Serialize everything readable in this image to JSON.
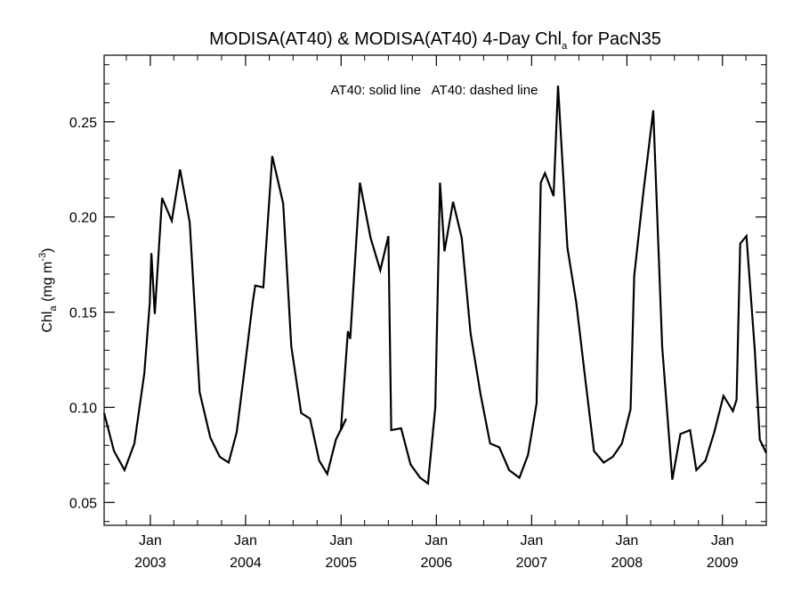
{
  "chart_data": {
    "type": "line",
    "title": {
      "prefix": "MODISA(AT40) & MODISA(AT40) 4-Day Chl",
      "subscript": "a",
      "suffix": " for PacN35"
    },
    "ylabel": {
      "prefix": "Chl",
      "subscript": "a",
      "middle": " (mg m",
      "superscript": "-3",
      "suffix": ")"
    },
    "xlabel": "",
    "annotation": "AT40: solid line   AT40: dashed line",
    "xlim": [
      "2002-07-08",
      "2009-06-18"
    ],
    "ylim": [
      0.038,
      0.285
    ],
    "y_ticks": [
      0.05,
      0.1,
      0.15,
      0.2,
      0.25
    ],
    "y_tick_labels": [
      "0.05",
      "0.10",
      "0.15",
      "0.20",
      "0.25"
    ],
    "x_ticks": [
      {
        "date": "2003-01-01",
        "month": "Jan",
        "year": "2003"
      },
      {
        "date": "2004-01-01",
        "month": "Jan",
        "year": "2004"
      },
      {
        "date": "2005-01-01",
        "month": "Jan",
        "year": "2005"
      },
      {
        "date": "2006-01-01",
        "month": "Jan",
        "year": "2006"
      },
      {
        "date": "2007-01-01",
        "month": "Jan",
        "year": "2007"
      },
      {
        "date": "2008-01-01",
        "month": "Jan",
        "year": "2008"
      },
      {
        "date": "2009-01-01",
        "month": "Jan",
        "year": "2009"
      }
    ],
    "series": [
      {
        "style": "solid",
        "color": "#000000",
        "points": [
          [
            "2002-07-08",
            0.097
          ],
          [
            "2002-08-15",
            0.077
          ],
          [
            "2002-09-24",
            0.067
          ],
          [
            "2002-11-01",
            0.081
          ],
          [
            "2002-12-09",
            0.118
          ],
          [
            "2002-12-30",
            0.155
          ],
          [
            "2003-01-05",
            0.181
          ],
          [
            "2003-01-18",
            0.149
          ],
          [
            "2003-02-15",
            0.21
          ],
          [
            "2003-03-24",
            0.198
          ],
          [
            "2003-04-25",
            0.225
          ],
          [
            "2003-06-01",
            0.197
          ],
          [
            "2003-07-09",
            0.108
          ],
          [
            "2003-08-19",
            0.084
          ],
          [
            "2003-09-24",
            0.074
          ],
          [
            "2003-10-28",
            0.071
          ],
          [
            "2003-11-28",
            0.087
          ],
          [
            "2003-12-28",
            0.12
          ],
          [
            "2004-01-28",
            0.155
          ],
          [
            "2004-02-07",
            0.164
          ],
          [
            "2004-03-09",
            0.163
          ],
          [
            "2004-04-12",
            0.232
          ],
          [
            "2004-05-24",
            0.207
          ],
          [
            "2004-06-24",
            0.132
          ],
          [
            "2004-08-01",
            0.097
          ],
          [
            "2004-09-04",
            0.094
          ],
          [
            "2004-10-09",
            0.072
          ],
          [
            "2004-11-09",
            0.065
          ],
          [
            "2004-12-12",
            0.083
          ],
          [
            "2005-01-20",
            0.094
          ],
          [
            "2004-12-31",
            0.088
          ],
          [
            "2005-01-27",
            0.14
          ],
          [
            "2005-02-05",
            0.136
          ],
          [
            "2005-03-14",
            0.218
          ],
          [
            "2005-04-24",
            0.189
          ],
          [
            "2005-05-31",
            0.172
          ],
          [
            "2005-07-01",
            0.19
          ],
          [
            "2005-07-12",
            0.088
          ],
          [
            "2005-08-19",
            0.089
          ],
          [
            "2005-09-24",
            0.07
          ],
          [
            "2005-10-31",
            0.063
          ],
          [
            "2005-11-30",
            0.06
          ],
          [
            "2005-12-28",
            0.1
          ],
          [
            "2006-01-15",
            0.218
          ],
          [
            "2006-02-01",
            0.182
          ],
          [
            "2006-03-06",
            0.208
          ],
          [
            "2006-04-08",
            0.189
          ],
          [
            "2006-05-12",
            0.139
          ],
          [
            "2006-06-19",
            0.107
          ],
          [
            "2006-07-26",
            0.081
          ],
          [
            "2006-08-30",
            0.079
          ],
          [
            "2006-10-07",
            0.067
          ],
          [
            "2006-11-15",
            0.063
          ],
          [
            "2006-12-18",
            0.075
          ],
          [
            "2007-01-20",
            0.102
          ],
          [
            "2007-02-05",
            0.218
          ],
          [
            "2007-02-21",
            0.223
          ],
          [
            "2007-03-07",
            0.218
          ],
          [
            "2007-03-26",
            0.211
          ],
          [
            "2007-04-12",
            0.269
          ],
          [
            "2007-05-18",
            0.184
          ],
          [
            "2007-06-21",
            0.155
          ],
          [
            "2007-07-27",
            0.113
          ],
          [
            "2007-08-28",
            0.077
          ],
          [
            "2007-10-04",
            0.071
          ],
          [
            "2007-11-08",
            0.074
          ],
          [
            "2007-12-13",
            0.081
          ],
          [
            "2008-01-15",
            0.099
          ],
          [
            "2008-01-29",
            0.169
          ],
          [
            "2008-03-04",
            0.213
          ],
          [
            "2008-04-11",
            0.256
          ],
          [
            "2008-05-15",
            0.132
          ],
          [
            "2008-06-23",
            0.062
          ],
          [
            "2008-07-24",
            0.086
          ],
          [
            "2008-08-30",
            0.088
          ],
          [
            "2008-09-23",
            0.067
          ],
          [
            "2008-10-28",
            0.072
          ],
          [
            "2008-12-01",
            0.087
          ],
          [
            "2009-01-05",
            0.106
          ],
          [
            "2009-02-10",
            0.098
          ],
          [
            "2009-02-24",
            0.104
          ],
          [
            "2009-03-10",
            0.186
          ],
          [
            "2009-04-03",
            0.19
          ],
          [
            "2009-05-05",
            0.13
          ],
          [
            "2009-05-24",
            0.083
          ],
          [
            "2009-06-18",
            0.076
          ]
        ]
      }
    ],
    "grid": false
  }
}
